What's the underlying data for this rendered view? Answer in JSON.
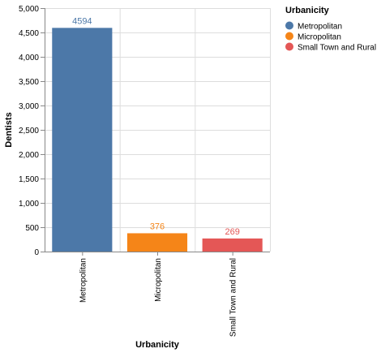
{
  "chart_data": {
    "type": "bar",
    "xlabel": "Urbanicity",
    "ylabel": "Dentists",
    "ylim": [
      0,
      5000
    ],
    "yticks": [
      0,
      500,
      1000,
      1500,
      2000,
      2500,
      3000,
      3500,
      4000,
      4500,
      5000
    ],
    "ytick_labels": [
      "0",
      "500",
      "1,000",
      "1,500",
      "2,000",
      "2,500",
      "3,000",
      "3,500",
      "4,000",
      "4,500",
      "5,000"
    ],
    "grid": true,
    "categories": [
      "Metropolitan",
      "Micropolitan",
      "Small Town and Rural"
    ],
    "values": [
      4594,
      376,
      269
    ],
    "data_labels": [
      "4594",
      "376",
      "269"
    ],
    "colors": [
      "#4c78a8",
      "#f58518",
      "#e45756"
    ],
    "legend": {
      "title": "Urbanicity",
      "placement": "top-right",
      "entries": [
        "Metropolitan",
        "Micropolitan",
        "Small Town and Rural"
      ]
    }
  }
}
